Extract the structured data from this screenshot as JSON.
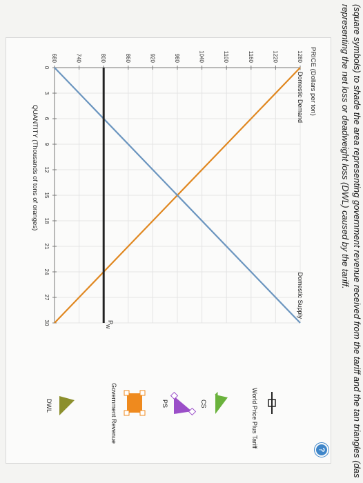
{
  "instructions": {
    "line1": "(square symbols) to shade the area representing government revenue received from the tariff and the tan triangles (das",
    "line2": "representing the net loss or deadweight loss (DWL) caused by the tariff."
  },
  "help_label": "?",
  "tools": {
    "world_price_plus_tariff": "World Price Plus Tariff",
    "cs": "CS",
    "ps": "PS",
    "government_revenue": "Government Revenue",
    "dwl": "DWL"
  },
  "colors": {
    "demand": "#e0871f",
    "supply": "#6b95bf",
    "world_price": "#222222",
    "cs": "#6ab23c",
    "ps": "#9b4fc8",
    "government_revenue": "#ef8a1e",
    "dwl": "#8c8f2c"
  },
  "chart_data": {
    "type": "line",
    "title": "",
    "ylabel": "PRICE (Dollars per ton)",
    "xlabel": "QUANTITY (Thousands of tons of oranges)",
    "xlim": [
      0,
      30
    ],
    "ylim": [
      680,
      1280
    ],
    "x_ticks": [
      0,
      3,
      6,
      9,
      12,
      15,
      18,
      21,
      24,
      27,
      30
    ],
    "y_ticks": [
      680,
      740,
      800,
      860,
      920,
      980,
      1040,
      1100,
      1160,
      1220,
      1280
    ],
    "series": [
      {
        "name": "Domestic Demand",
        "x": [
          0,
          30
        ],
        "y": [
          1280,
          680
        ]
      },
      {
        "name": "Domestic Supply",
        "x": [
          0,
          30
        ],
        "y": [
          680,
          1280
        ]
      },
      {
        "name": "P_W",
        "x": [
          0,
          30
        ],
        "y": [
          800,
          800
        ]
      }
    ],
    "annotations": {
      "demand": "Domestic Demand",
      "supply": "Domestic Supply",
      "world_price": "P",
      "world_price_sub": "W"
    }
  }
}
